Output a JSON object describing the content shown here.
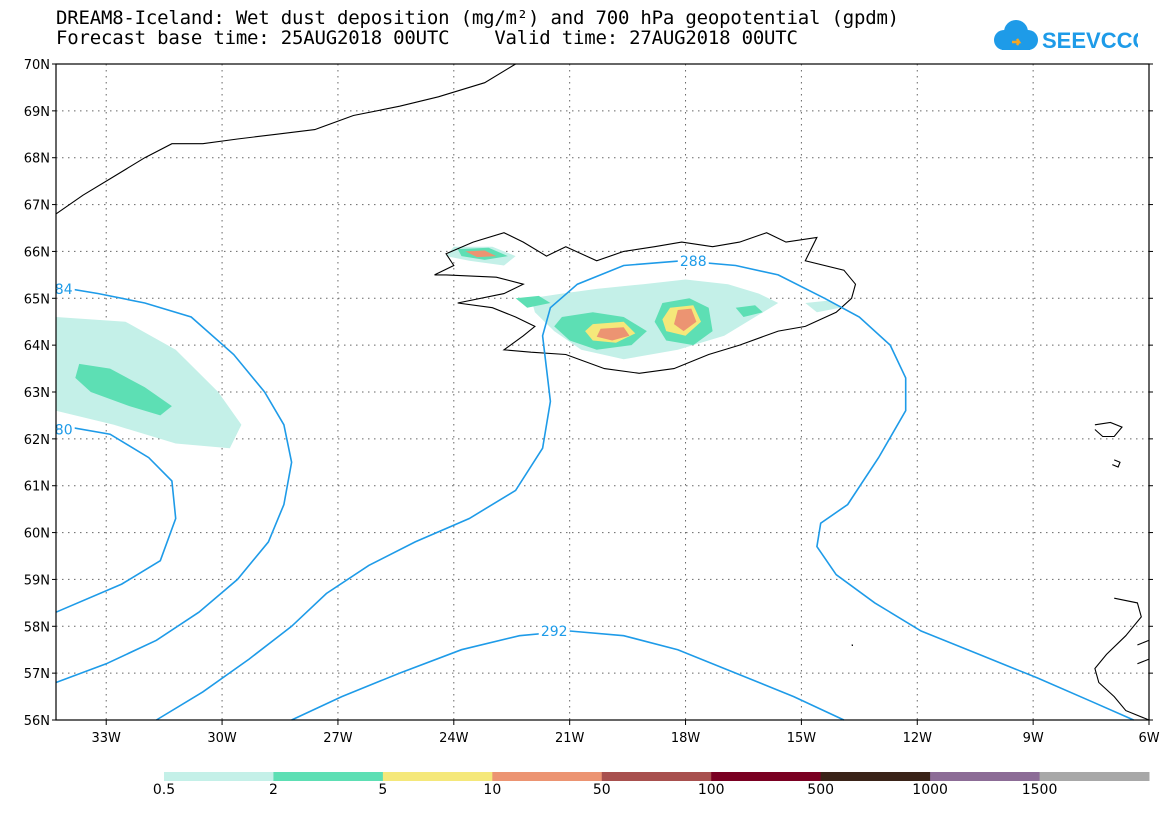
{
  "header": {
    "title_line1": "DREAM8-Iceland: Wet dust deposition (mg/m²) and 700 hPa geopotential (gpdm)",
    "title_line2": "Forecast base time: 25AUG2018 00UTC    Valid time: 27AUG2018 00UTC",
    "logo_text": "SEEVCCC",
    "logo_color": "#1e9be8"
  },
  "map": {
    "lat_labels": [
      "70N",
      "69N",
      "68N",
      "67N",
      "66N",
      "65N",
      "64N",
      "63N",
      "62N",
      "61N",
      "60N",
      "59N",
      "58N",
      "57N",
      "56N"
    ],
    "lon_labels": [
      "33W",
      "30W",
      "27W",
      "24W",
      "21W",
      "18W",
      "15W",
      "12W",
      "9W",
      "6W"
    ],
    "lat_range": [
      56,
      70
    ],
    "lon_range": [
      -34.3,
      -6
    ],
    "grid": "dotted",
    "contour_labels": [
      {
        "value": "292",
        "lon": -21.4,
        "lat": 57.9
      },
      {
        "value": "288",
        "lon": -17.8,
        "lat": 65.8
      },
      {
        "value": "84",
        "lon": -34.1,
        "lat": 65.2
      },
      {
        "value": "80",
        "lon": -34.1,
        "lat": 62.2
      }
    ],
    "contour_color": "#1e9be8",
    "coast_color": "#000000"
  },
  "legend": {
    "labels": [
      "0.5",
      "2",
      "5",
      "10",
      "50",
      "100",
      "500",
      "1000",
      "1500"
    ],
    "colors": [
      "#c4f0e8",
      "#5ddfb4",
      "#f5e87a",
      "#ec9472",
      "#a8504e",
      "#7a0022",
      "#3a2318",
      "#8c6c96",
      "#a8a8a8"
    ]
  }
}
